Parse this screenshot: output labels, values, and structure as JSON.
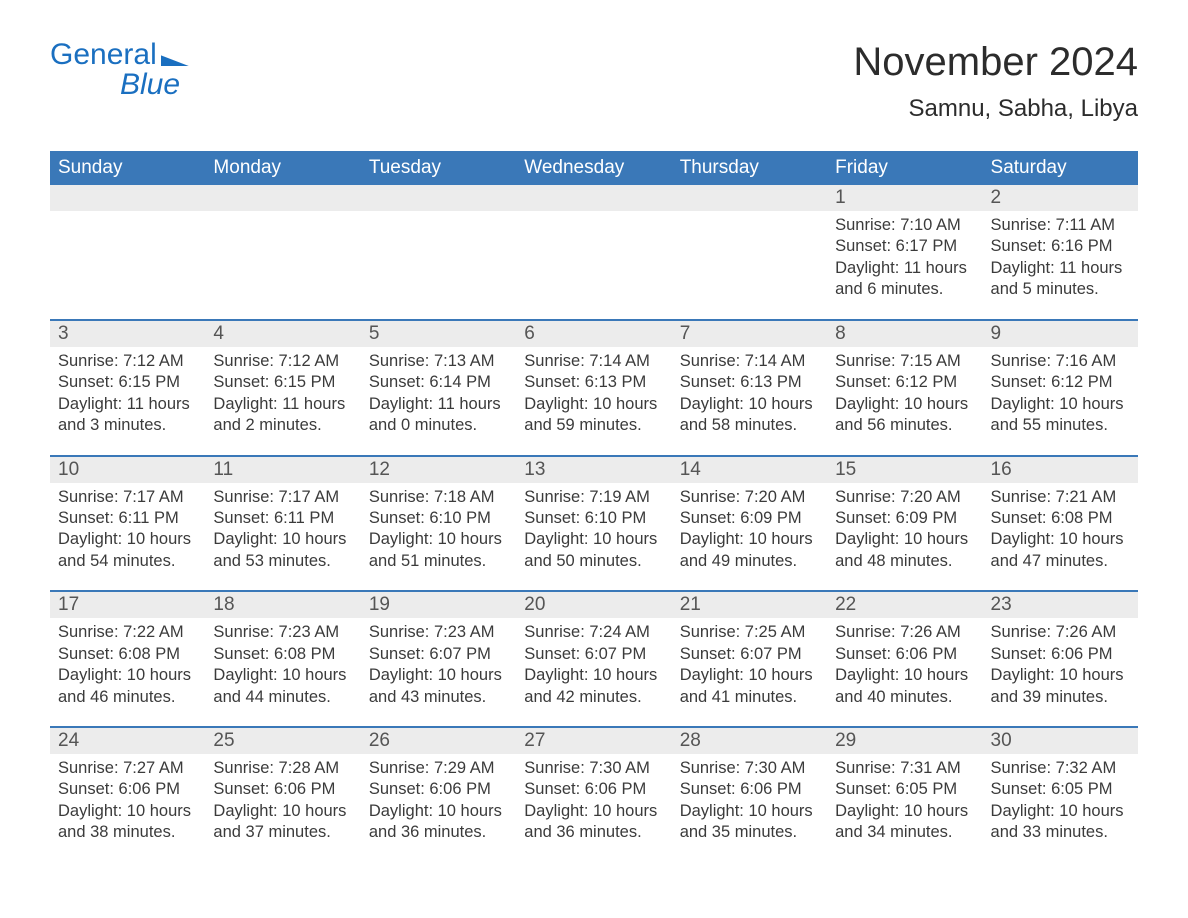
{
  "brand": {
    "word1": "General",
    "word2": "Blue"
  },
  "title": "November 2024",
  "location": "Samnu, Sabha, Libya",
  "colors": {
    "brand_blue": "#1a6fc0",
    "header_blue": "#3a78b8",
    "daynum_bg": "#ececec",
    "text": "#3b3b3b",
    "background": "#ffffff"
  },
  "day_headers": [
    "Sunday",
    "Monday",
    "Tuesday",
    "Wednesday",
    "Thursday",
    "Friday",
    "Saturday"
  ],
  "weeks": [
    [
      null,
      null,
      null,
      null,
      null,
      {
        "n": "1",
        "sunrise": "Sunrise: 7:10 AM",
        "sunset": "Sunset: 6:17 PM",
        "daylight": "Daylight: 11 hours and 6 minutes."
      },
      {
        "n": "2",
        "sunrise": "Sunrise: 7:11 AM",
        "sunset": "Sunset: 6:16 PM",
        "daylight": "Daylight: 11 hours and 5 minutes."
      }
    ],
    [
      {
        "n": "3",
        "sunrise": "Sunrise: 7:12 AM",
        "sunset": "Sunset: 6:15 PM",
        "daylight": "Daylight: 11 hours and 3 minutes."
      },
      {
        "n": "4",
        "sunrise": "Sunrise: 7:12 AM",
        "sunset": "Sunset: 6:15 PM",
        "daylight": "Daylight: 11 hours and 2 minutes."
      },
      {
        "n": "5",
        "sunrise": "Sunrise: 7:13 AM",
        "sunset": "Sunset: 6:14 PM",
        "daylight": "Daylight: 11 hours and 0 minutes."
      },
      {
        "n": "6",
        "sunrise": "Sunrise: 7:14 AM",
        "sunset": "Sunset: 6:13 PM",
        "daylight": "Daylight: 10 hours and 59 minutes."
      },
      {
        "n": "7",
        "sunrise": "Sunrise: 7:14 AM",
        "sunset": "Sunset: 6:13 PM",
        "daylight": "Daylight: 10 hours and 58 minutes."
      },
      {
        "n": "8",
        "sunrise": "Sunrise: 7:15 AM",
        "sunset": "Sunset: 6:12 PM",
        "daylight": "Daylight: 10 hours and 56 minutes."
      },
      {
        "n": "9",
        "sunrise": "Sunrise: 7:16 AM",
        "sunset": "Sunset: 6:12 PM",
        "daylight": "Daylight: 10 hours and 55 minutes."
      }
    ],
    [
      {
        "n": "10",
        "sunrise": "Sunrise: 7:17 AM",
        "sunset": "Sunset: 6:11 PM",
        "daylight": "Daylight: 10 hours and 54 minutes."
      },
      {
        "n": "11",
        "sunrise": "Sunrise: 7:17 AM",
        "sunset": "Sunset: 6:11 PM",
        "daylight": "Daylight: 10 hours and 53 minutes."
      },
      {
        "n": "12",
        "sunrise": "Sunrise: 7:18 AM",
        "sunset": "Sunset: 6:10 PM",
        "daylight": "Daylight: 10 hours and 51 minutes."
      },
      {
        "n": "13",
        "sunrise": "Sunrise: 7:19 AM",
        "sunset": "Sunset: 6:10 PM",
        "daylight": "Daylight: 10 hours and 50 minutes."
      },
      {
        "n": "14",
        "sunrise": "Sunrise: 7:20 AM",
        "sunset": "Sunset: 6:09 PM",
        "daylight": "Daylight: 10 hours and 49 minutes."
      },
      {
        "n": "15",
        "sunrise": "Sunrise: 7:20 AM",
        "sunset": "Sunset: 6:09 PM",
        "daylight": "Daylight: 10 hours and 48 minutes."
      },
      {
        "n": "16",
        "sunrise": "Sunrise: 7:21 AM",
        "sunset": "Sunset: 6:08 PM",
        "daylight": "Daylight: 10 hours and 47 minutes."
      }
    ],
    [
      {
        "n": "17",
        "sunrise": "Sunrise: 7:22 AM",
        "sunset": "Sunset: 6:08 PM",
        "daylight": "Daylight: 10 hours and 46 minutes."
      },
      {
        "n": "18",
        "sunrise": "Sunrise: 7:23 AM",
        "sunset": "Sunset: 6:08 PM",
        "daylight": "Daylight: 10 hours and 44 minutes."
      },
      {
        "n": "19",
        "sunrise": "Sunrise: 7:23 AM",
        "sunset": "Sunset: 6:07 PM",
        "daylight": "Daylight: 10 hours and 43 minutes."
      },
      {
        "n": "20",
        "sunrise": "Sunrise: 7:24 AM",
        "sunset": "Sunset: 6:07 PM",
        "daylight": "Daylight: 10 hours and 42 minutes."
      },
      {
        "n": "21",
        "sunrise": "Sunrise: 7:25 AM",
        "sunset": "Sunset: 6:07 PM",
        "daylight": "Daylight: 10 hours and 41 minutes."
      },
      {
        "n": "22",
        "sunrise": "Sunrise: 7:26 AM",
        "sunset": "Sunset: 6:06 PM",
        "daylight": "Daylight: 10 hours and 40 minutes."
      },
      {
        "n": "23",
        "sunrise": "Sunrise: 7:26 AM",
        "sunset": "Sunset: 6:06 PM",
        "daylight": "Daylight: 10 hours and 39 minutes."
      }
    ],
    [
      {
        "n": "24",
        "sunrise": "Sunrise: 7:27 AM",
        "sunset": "Sunset: 6:06 PM",
        "daylight": "Daylight: 10 hours and 38 minutes."
      },
      {
        "n": "25",
        "sunrise": "Sunrise: 7:28 AM",
        "sunset": "Sunset: 6:06 PM",
        "daylight": "Daylight: 10 hours and 37 minutes."
      },
      {
        "n": "26",
        "sunrise": "Sunrise: 7:29 AM",
        "sunset": "Sunset: 6:06 PM",
        "daylight": "Daylight: 10 hours and 36 minutes."
      },
      {
        "n": "27",
        "sunrise": "Sunrise: 7:30 AM",
        "sunset": "Sunset: 6:06 PM",
        "daylight": "Daylight: 10 hours and 36 minutes."
      },
      {
        "n": "28",
        "sunrise": "Sunrise: 7:30 AM",
        "sunset": "Sunset: 6:06 PM",
        "daylight": "Daylight: 10 hours and 35 minutes."
      },
      {
        "n": "29",
        "sunrise": "Sunrise: 7:31 AM",
        "sunset": "Sunset: 6:05 PM",
        "daylight": "Daylight: 10 hours and 34 minutes."
      },
      {
        "n": "30",
        "sunrise": "Sunrise: 7:32 AM",
        "sunset": "Sunset: 6:05 PM",
        "daylight": "Daylight: 10 hours and 33 minutes."
      }
    ]
  ]
}
